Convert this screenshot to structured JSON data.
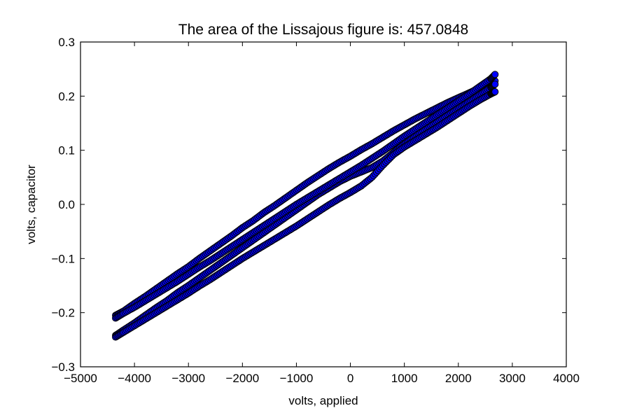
{
  "chart_data": {
    "type": "scatter",
    "title": "The area of the Lissajous figure is: 457.0848",
    "xlabel": "volts, applied",
    "ylabel": "volts, capacitor",
    "xlim": [
      -5000,
      4000
    ],
    "ylim": [
      -0.3,
      0.3
    ],
    "xticks": [
      -5000,
      -4000,
      -3000,
      -2000,
      -1000,
      0,
      1000,
      2000,
      3000,
      4000
    ],
    "xtick_labels": [
      "−5000",
      "−4000",
      "−3000",
      "−2000",
      "−1000",
      "0",
      "1000",
      "2000",
      "3000",
      "4000"
    ],
    "yticks": [
      -0.3,
      -0.2,
      -0.1,
      0.0,
      0.1,
      0.2,
      0.3
    ],
    "ytick_labels": [
      "−0.3",
      "−0.2",
      "−0.1",
      "0.0",
      "0.1",
      "0.2",
      "0.3"
    ],
    "grid": false,
    "marker_color": "#0000ff",
    "marker_edge_color": "#000000",
    "series": [
      {
        "x": [
          -4350,
          -4200,
          -4000,
          -3800,
          -3600,
          -3400,
          -3200,
          -3000,
          -2800,
          -2600,
          -2400,
          -2200,
          -2000,
          -1800,
          -1600,
          -1400,
          -1200,
          -1000,
          -800,
          -600,
          -400,
          -200,
          0,
          200,
          400,
          600,
          800,
          1000,
          1200,
          1400,
          1600,
          1800,
          2000,
          2200,
          2400,
          2600,
          2680
        ],
        "y": [
          -0.205,
          -0.197,
          -0.183,
          -0.17,
          -0.156,
          -0.142,
          -0.128,
          -0.115,
          -0.1,
          -0.086,
          -0.072,
          -0.058,
          -0.043,
          -0.03,
          -0.015,
          -0.002,
          0.012,
          0.026,
          0.04,
          0.053,
          0.066,
          0.078,
          0.089,
          0.101,
          0.112,
          0.124,
          0.136,
          0.147,
          0.158,
          0.168,
          0.178,
          0.188,
          0.197,
          0.206,
          0.215,
          0.224,
          0.228
        ]
      },
      {
        "x": [
          -4350,
          -4200,
          -4000,
          -3800,
          -3600,
          -3400,
          -3200,
          -3000,
          -2800,
          -2600,
          -2400,
          -2200,
          -2000,
          -1800,
          -1600,
          -1400,
          -1200,
          -1000,
          -800,
          -600,
          -400,
          -200,
          0,
          200,
          400,
          600,
          800,
          1000,
          1200,
          1400,
          1600,
          1800,
          2000,
          2200,
          2400,
          2600,
          2680
        ],
        "y": [
          -0.242,
          -0.232,
          -0.219,
          -0.205,
          -0.191,
          -0.178,
          -0.163,
          -0.15,
          -0.136,
          -0.122,
          -0.108,
          -0.094,
          -0.08,
          -0.066,
          -0.052,
          -0.038,
          -0.024,
          -0.01,
          0.004,
          0.018,
          0.03,
          0.042,
          0.052,
          0.06,
          0.068,
          0.08,
          0.096,
          0.112,
          0.126,
          0.14,
          0.153,
          0.166,
          0.178,
          0.19,
          0.203,
          0.216,
          0.222
        ]
      },
      {
        "x": [
          -4350,
          -4200,
          -4000,
          -3800,
          -3600,
          -3400,
          -3200,
          -3000,
          -2800,
          -2600,
          -2400,
          -2200,
          -2000,
          -1800,
          -1600,
          -1400,
          -1200,
          -1000,
          -800,
          -600,
          -400,
          -200,
          0,
          200,
          400,
          600,
          800,
          1000,
          1200,
          1400,
          1600,
          1800,
          2000,
          2200,
          2400,
          2600,
          2680
        ],
        "y": [
          -0.245,
          -0.236,
          -0.224,
          -0.212,
          -0.2,
          -0.188,
          -0.176,
          -0.164,
          -0.151,
          -0.139,
          -0.126,
          -0.113,
          -0.1,
          -0.088,
          -0.076,
          -0.064,
          -0.052,
          -0.04,
          -0.027,
          -0.014,
          -0.001,
          0.011,
          0.022,
          0.034,
          0.05,
          0.072,
          0.092,
          0.106,
          0.118,
          0.13,
          0.142,
          0.155,
          0.168,
          0.181,
          0.193,
          0.204,
          0.208
        ]
      },
      {
        "x": [
          -4350,
          -4200,
          -4000,
          -3800,
          -3600,
          -3400,
          -3200,
          -3000,
          -2800,
          -2600,
          -2400,
          -2200,
          -2000,
          -1800,
          -1600,
          -1400,
          -1200,
          -1000,
          -800,
          -600,
          -400,
          -200,
          0,
          200,
          400,
          600,
          800,
          1000,
          1200,
          1400,
          1600,
          1800,
          2000,
          2200,
          2400,
          2600,
          2680
        ],
        "y": [
          -0.21,
          -0.201,
          -0.19,
          -0.178,
          -0.166,
          -0.154,
          -0.142,
          -0.129,
          -0.116,
          -0.104,
          -0.091,
          -0.078,
          -0.065,
          -0.052,
          -0.039,
          -0.026,
          -0.013,
          0.0,
          0.012,
          0.024,
          0.036,
          0.048,
          0.06,
          0.072,
          0.085,
          0.098,
          0.112,
          0.126,
          0.139,
          0.152,
          0.165,
          0.178,
          0.191,
          0.204,
          0.218,
          0.232,
          0.24
        ]
      }
    ]
  }
}
